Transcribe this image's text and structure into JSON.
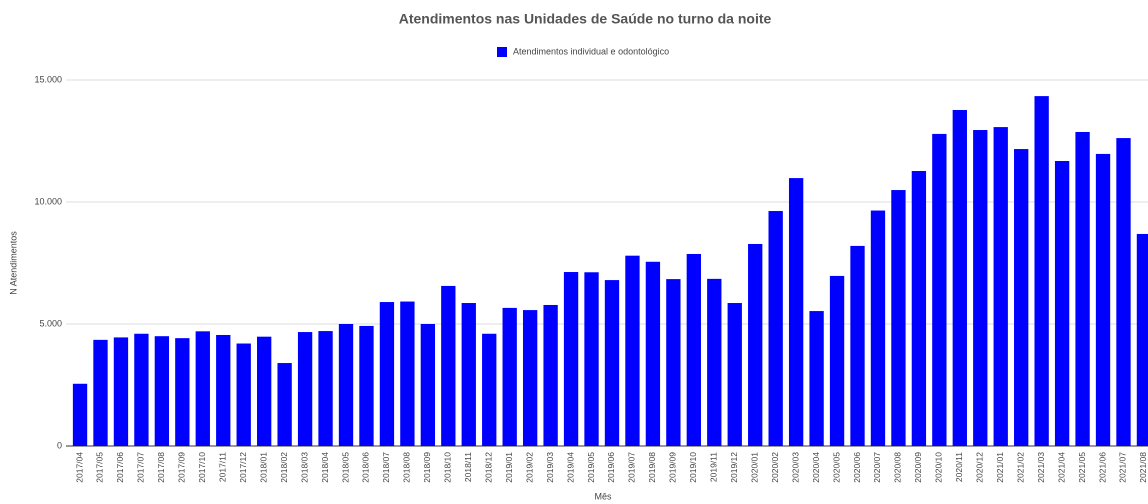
{
  "chart_data": {
    "type": "bar",
    "title": "Atendimentos nas Unidades de Saúde no turno da noite",
    "x_label": "Mês",
    "y_label": "N Atendimentos",
    "categories": [
      "2017/04",
      "2017/05",
      "2017/06",
      "2017/07",
      "2017/08",
      "2017/09",
      "2017/10",
      "2017/11",
      "2017/12",
      "2018/01",
      "2018/02",
      "2018/03",
      "2018/04",
      "2018/05",
      "2018/06",
      "2018/07",
      "2018/08",
      "2018/09",
      "2018/10",
      "2018/11",
      "2018/12",
      "2019/01",
      "2019/02",
      "2019/03",
      "2019/04",
      "2019/05",
      "2019/06",
      "2019/07",
      "2019/08",
      "2019/09",
      "2019/10",
      "2019/11",
      "2019/12",
      "2020/01",
      "2020/02",
      "2020/03",
      "2020/04",
      "2020/05",
      "2020/06",
      "2020/07",
      "2020/08",
      "2020/09",
      "2020/10",
      "2020/11",
      "2020/12",
      "2021/01",
      "2021/02",
      "2021/03",
      "2021/04",
      "2021/05",
      "2021/06",
      "2021/07",
      "2021/08"
    ],
    "series": [
      {
        "name": "Atendimentos individual e odontológico",
        "color": "#0000ff",
        "values": [
          2550,
          4350,
          4450,
          4600,
          4500,
          4420,
          4700,
          4550,
          4200,
          4480,
          3400,
          4670,
          4710,
          5000,
          4920,
          5900,
          5920,
          5000,
          6560,
          5860,
          4600,
          5660,
          5570,
          5780,
          7130,
          7120,
          6800,
          7800,
          7550,
          6840,
          7870,
          6850,
          5860,
          8280,
          9630,
          10980,
          5530,
          6970,
          8200,
          9650,
          10490,
          11270,
          12790,
          13770,
          12950,
          13070,
          12170,
          14340,
          11680,
          12870,
          11970,
          12620,
          8690
        ]
      }
    ],
    "ylim": [
      0,
      15000
    ],
    "yticks": [
      0,
      {
        "value": 5000,
        "label": "5.000"
      },
      {
        "value": 10000,
        "label": "10.000"
      },
      {
        "value": 15000,
        "label": "15.000"
      }
    ],
    "grid": true,
    "legend": "top"
  }
}
